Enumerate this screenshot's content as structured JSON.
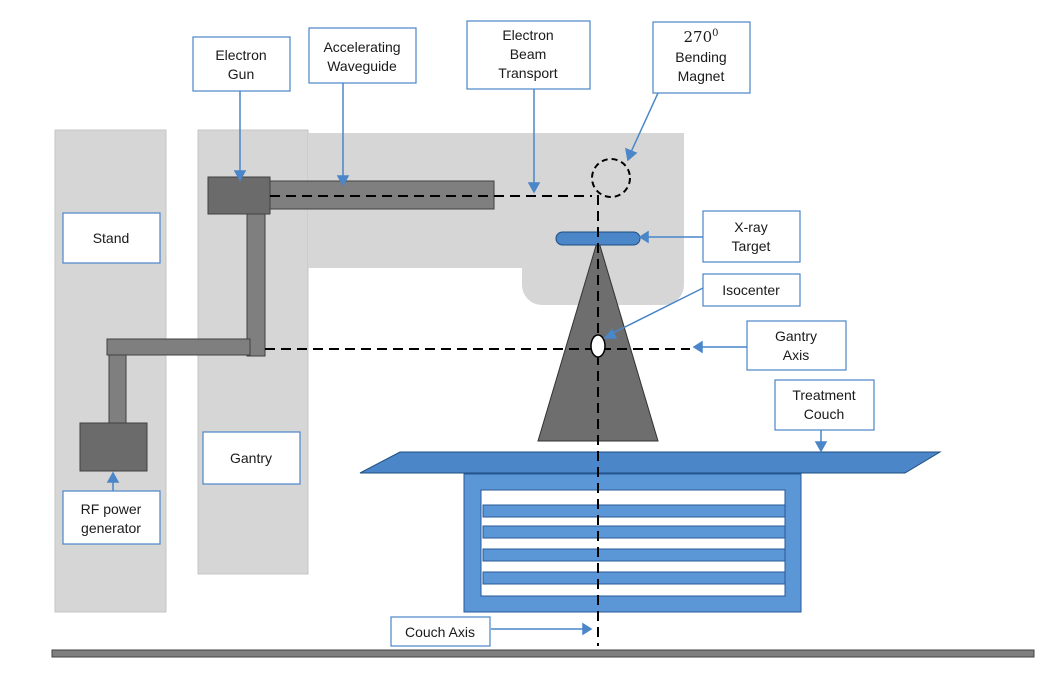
{
  "colors": {
    "panel_gray": "#d6d6d6",
    "dark_gray": "#7f7f7f",
    "darker_gray": "#6b6b6b",
    "accent_blue": "#4a86c8",
    "box_border": "#4a86c8",
    "couch_blue": "#5b96d6",
    "line_black": "#000000"
  },
  "labels": {
    "stand": "Stand",
    "gantry": "Gantry",
    "rf_power_generator": [
      "RF power",
      "generator"
    ],
    "electron_gun": [
      "Electron",
      "Gun"
    ],
    "accelerating_waveguide": [
      "Accelerating",
      "Waveguide"
    ],
    "electron_beam_transport": [
      "Electron",
      "Beam",
      "Transport"
    ],
    "bending_magnet": {
      "number": "270",
      "exponent": "0",
      "lines": [
        "Bending",
        "Magnet"
      ]
    },
    "xray_target": [
      "X-ray",
      "Target"
    ],
    "isocenter": "Isocenter",
    "gantry_axis": [
      "Gantry",
      "Axis"
    ],
    "treatment_couch": [
      "Treatment",
      "Couch"
    ],
    "couch_axis": "Couch Axis"
  }
}
